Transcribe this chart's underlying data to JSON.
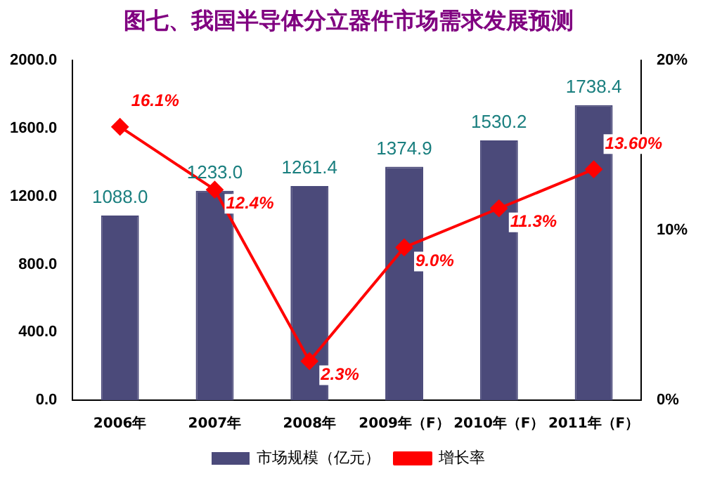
{
  "chart_data": {
    "type": "bar",
    "title": "图七、我国半导体分立器件市场需求发展预测",
    "categories": [
      "2006年",
      "2007年",
      "2008年",
      "2009年（F）",
      "2010年（F）",
      "2011年（F）"
    ],
    "series": [
      {
        "name": "市场规模（亿元）",
        "color": "#4b4a7a",
        "values": [
          1088.0,
          1233.0,
          1261.4,
          1374.9,
          1530.2,
          1738.4
        ],
        "value_labels": [
          "1088.0",
          "1233.0",
          "1261.4",
          "1374.9",
          "1530.2",
          "1738.4"
        ]
      },
      {
        "name": "增长率",
        "type": "line",
        "axis": "y2",
        "color": "#ff0000",
        "marker": "diamond",
        "values": [
          16.1,
          12.4,
          2.3,
          9.0,
          11.3,
          13.6
        ],
        "value_labels": [
          "16.1%",
          "12.4%",
          "2.3%",
          "9.0%",
          "11.3%",
          "13.60%"
        ]
      }
    ],
    "ylim": [
      0,
      2000
    ],
    "yticks": [
      {
        "value": 0,
        "label": "0.0"
      },
      {
        "value": 400,
        "label": "400.0"
      },
      {
        "value": 800,
        "label": "800.0"
      },
      {
        "value": 1200,
        "label": "1200.0"
      },
      {
        "value": 1600,
        "label": "1600.0"
      },
      {
        "value": 2000,
        "label": "2000.0"
      }
    ],
    "y2lim": [
      0,
      20
    ],
    "y2ticks": [
      {
        "value": 0,
        "label": "0%"
      },
      {
        "value": 10,
        "label": "10%"
      },
      {
        "value": 20,
        "label": "20%"
      }
    ],
    "grid": false,
    "legend": "bottom"
  }
}
